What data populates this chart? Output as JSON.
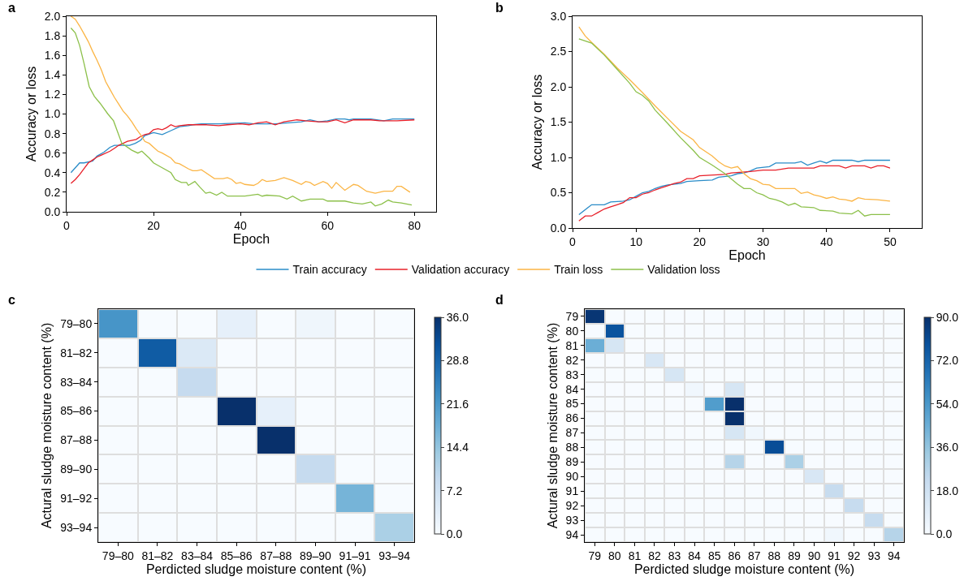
{
  "chart_data": [
    {
      "type": "line",
      "title": "a",
      "xlabel": "Epoch",
      "ylabel": "Accuracy or loss",
      "xlim": [
        0,
        85
      ],
      "xticks": [
        0,
        20,
        40,
        60,
        80
      ],
      "ylim": [
        0,
        2
      ],
      "yticks": [
        {
          "value": 0,
          "label": "0.0"
        },
        {
          "value": 0.2,
          "label": "0.2"
        },
        {
          "value": 0.4,
          "label": "0.4"
        },
        {
          "value": 0.6,
          "label": "0.6"
        },
        {
          "value": 0.8,
          "label": "0.8"
        },
        {
          "value": 1,
          "label": "1.0"
        },
        {
          "value": 1.2,
          "label": "1.2"
        },
        {
          "value": 1.4,
          "label": "1.4"
        },
        {
          "value": 1.6,
          "label": "1.6"
        },
        {
          "value": 1.8,
          "label": "1.8"
        },
        {
          "value": 2,
          "label": "2.0"
        }
      ],
      "grid": false,
      "legend": "bottom",
      "marker": "none",
      "line_style": "solid",
      "series": [
        {
          "name": "Train accuracy",
          "color": "#2a8cc8",
          "x": [
            1,
            3,
            4,
            6,
            7,
            8.6,
            10,
            11,
            14.5,
            15.8,
            17,
            18,
            20,
            22,
            24,
            26,
            28,
            29,
            31,
            35,
            41,
            43,
            48,
            54,
            56,
            58,
            60,
            62,
            64,
            65,
            66,
            70,
            73,
            75,
            79,
            80
          ],
          "values": [
            0.4,
            0.5,
            0.5,
            0.52,
            0.57,
            0.61,
            0.66,
            0.68,
            0.68,
            0.7,
            0.73,
            0.78,
            0.81,
            0.79,
            0.83,
            0.87,
            0.88,
            0.89,
            0.9,
            0.9,
            0.91,
            0.9,
            0.9,
            0.92,
            0.94,
            0.92,
            0.93,
            0.95,
            0.95,
            0.94,
            0.95,
            0.95,
            0.93,
            0.95,
            0.95,
            0.95
          ]
        },
        {
          "name": "Validation accuracy",
          "color": "#e8202a",
          "x": [
            1,
            2,
            3,
            4,
            5,
            6,
            7,
            8,
            10,
            11,
            12,
            14,
            16,
            17,
            18,
            19,
            20,
            21,
            22,
            23,
            24,
            25,
            26,
            28,
            30,
            32,
            35,
            37,
            40,
            42,
            44,
            46,
            48,
            50,
            53,
            55,
            58,
            60,
            62,
            64,
            66,
            70,
            72,
            74,
            76,
            80
          ],
          "values": [
            0.29,
            0.33,
            0.38,
            0.44,
            0.5,
            0.53,
            0.56,
            0.58,
            0.62,
            0.65,
            0.68,
            0.72,
            0.74,
            0.77,
            0.79,
            0.8,
            0.84,
            0.85,
            0.84,
            0.86,
            0.89,
            0.87,
            0.88,
            0.89,
            0.89,
            0.89,
            0.88,
            0.89,
            0.9,
            0.89,
            0.91,
            0.92,
            0.89,
            0.92,
            0.94,
            0.93,
            0.92,
            0.92,
            0.94,
            0.91,
            0.94,
            0.94,
            0.93,
            0.93,
            0.93,
            0.94
          ]
        },
        {
          "name": "Train loss",
          "color": "#fbb545",
          "x": [
            1,
            2,
            3,
            4,
            5,
            6,
            7,
            8,
            9,
            10,
            11,
            12,
            13,
            14,
            15,
            16,
            17,
            18,
            19,
            20,
            21,
            22,
            24,
            25,
            26,
            28,
            29,
            30,
            31,
            32,
            34,
            36,
            37,
            38,
            39,
            40,
            41,
            43,
            44,
            45,
            46,
            48,
            50,
            52,
            54,
            55,
            56,
            57,
            59,
            60,
            61,
            62,
            64,
            66,
            67,
            69,
            71,
            73,
            75,
            76,
            77,
            79
          ],
          "values": [
            2.0,
            1.97,
            1.9,
            1.82,
            1.74,
            1.64,
            1.55,
            1.45,
            1.33,
            1.25,
            1.17,
            1.1,
            1.03,
            0.98,
            0.92,
            0.85,
            0.79,
            0.72,
            0.7,
            0.66,
            0.62,
            0.6,
            0.55,
            0.5,
            0.49,
            0.44,
            0.42,
            0.42,
            0.43,
            0.4,
            0.34,
            0.34,
            0.35,
            0.33,
            0.29,
            0.3,
            0.28,
            0.27,
            0.29,
            0.33,
            0.31,
            0.32,
            0.35,
            0.32,
            0.28,
            0.31,
            0.3,
            0.27,
            0.31,
            0.29,
            0.24,
            0.3,
            0.22,
            0.28,
            0.27,
            0.21,
            0.19,
            0.21,
            0.21,
            0.26,
            0.26,
            0.2
          ]
        },
        {
          "name": "Validation loss",
          "color": "#8cc04a",
          "x": [
            1,
            2,
            3,
            4,
            5.2,
            6.4,
            7.7,
            9.5,
            10.8,
            12.7,
            15,
            16.4,
            17.3,
            19,
            20,
            22,
            24,
            25,
            26.4,
            27.6,
            28,
            29.5,
            30.7,
            32,
            33,
            34.5,
            35.7,
            37,
            38.8,
            41,
            44,
            45,
            46,
            49,
            50.7,
            52,
            54,
            56,
            59,
            60,
            64,
            66,
            68,
            70,
            71,
            72.5,
            74,
            75,
            77,
            79.4
          ],
          "values": [
            1.88,
            1.83,
            1.7,
            1.52,
            1.28,
            1.18,
            1.11,
            1.0,
            0.93,
            0.7,
            0.63,
            0.6,
            0.62,
            0.55,
            0.5,
            0.45,
            0.4,
            0.33,
            0.3,
            0.3,
            0.27,
            0.31,
            0.25,
            0.19,
            0.2,
            0.17,
            0.2,
            0.16,
            0.16,
            0.16,
            0.18,
            0.16,
            0.17,
            0.16,
            0.13,
            0.16,
            0.11,
            0.13,
            0.13,
            0.11,
            0.11,
            0.09,
            0.08,
            0.1,
            0.06,
            0.08,
            0.12,
            0.1,
            0.09,
            0.07
          ]
        }
      ]
    },
    {
      "type": "line",
      "title": "b",
      "xlabel": "Epoch",
      "ylabel": "Accuracy or loss",
      "xlim": [
        0,
        55
      ],
      "xticks": [
        0,
        10,
        20,
        30,
        40,
        50
      ],
      "ylim": [
        0,
        3
      ],
      "yticks": [
        {
          "value": 0,
          "label": "0.0"
        },
        {
          "value": 0.5,
          "label": "0.5"
        },
        {
          "value": 1,
          "label": "1.0"
        },
        {
          "value": 1.5,
          "label": "1.5"
        },
        {
          "value": 2,
          "label": "2.0"
        },
        {
          "value": 2.5,
          "label": "2.5"
        },
        {
          "value": 3,
          "label": "3.0"
        }
      ],
      "grid": false,
      "legend": false,
      "marker": "none",
      "line_style": "solid",
      "series": [
        {
          "color": "#2a8cc8",
          "x": [
            1,
            3,
            5,
            6,
            8,
            9,
            10,
            11,
            12,
            13,
            14,
            15,
            17,
            18,
            20,
            22,
            23,
            25,
            26,
            27,
            28,
            29,
            31,
            32,
            35,
            36,
            37,
            38,
            39,
            40,
            41,
            44,
            45,
            46,
            50
          ],
          "values": [
            0.19,
            0.33,
            0.33,
            0.37,
            0.38,
            0.4,
            0.45,
            0.5,
            0.52,
            0.56,
            0.59,
            0.61,
            0.63,
            0.66,
            0.67,
            0.68,
            0.72,
            0.74,
            0.77,
            0.78,
            0.81,
            0.85,
            0.87,
            0.92,
            0.92,
            0.94,
            0.89,
            0.92,
            0.95,
            0.92,
            0.96,
            0.96,
            0.94,
            0.96,
            0.96
          ]
        },
        {
          "color": "#e8202a",
          "x": [
            1,
            2,
            3,
            4,
            5,
            6,
            7,
            8,
            9,
            10,
            11,
            12,
            13,
            14,
            15,
            16,
            17,
            18,
            19,
            20,
            24,
            25,
            28,
            30,
            32,
            34,
            38,
            39,
            42,
            43,
            44,
            46,
            47,
            48,
            49,
            50
          ],
          "values": [
            0.1,
            0.17,
            0.17,
            0.22,
            0.27,
            0.3,
            0.33,
            0.36,
            0.43,
            0.43,
            0.48,
            0.5,
            0.54,
            0.57,
            0.6,
            0.63,
            0.65,
            0.7,
            0.7,
            0.74,
            0.76,
            0.78,
            0.8,
            0.82,
            0.82,
            0.85,
            0.85,
            0.88,
            0.88,
            0.85,
            0.88,
            0.88,
            0.85,
            0.88,
            0.88,
            0.85
          ]
        },
        {
          "color": "#fbb545",
          "x": [
            1,
            2,
            3,
            5,
            7,
            9,
            11,
            13,
            15,
            17,
            19,
            20,
            21,
            22,
            23,
            24,
            25,
            26,
            27,
            28,
            29,
            30,
            31,
            32,
            33,
            35,
            36,
            37,
            38,
            39,
            40,
            41,
            42,
            43,
            44,
            45,
            46,
            48,
            50
          ],
          "values": [
            2.85,
            2.72,
            2.63,
            2.46,
            2.27,
            2.1,
            1.92,
            1.73,
            1.55,
            1.37,
            1.25,
            1.14,
            1.08,
            1.02,
            0.94,
            0.88,
            0.85,
            0.87,
            0.77,
            0.7,
            0.67,
            0.62,
            0.61,
            0.56,
            0.56,
            0.56,
            0.49,
            0.51,
            0.47,
            0.45,
            0.42,
            0.44,
            0.41,
            0.4,
            0.38,
            0.43,
            0.41,
            0.4,
            0.38
          ]
        },
        {
          "color": "#8cc04a",
          "x": [
            1,
            3,
            5,
            7,
            9,
            10,
            11,
            12,
            13,
            15,
            17,
            19,
            20,
            22,
            24,
            26,
            27,
            28,
            29,
            30,
            31,
            32,
            33,
            34,
            35,
            36,
            38,
            39,
            41,
            42,
            44,
            45,
            46,
            47,
            50
          ],
          "values": [
            2.68,
            2.62,
            2.45,
            2.25,
            2.05,
            1.93,
            1.88,
            1.8,
            1.67,
            1.48,
            1.28,
            1.1,
            1.0,
            0.89,
            0.77,
            0.62,
            0.56,
            0.56,
            0.5,
            0.47,
            0.42,
            0.4,
            0.37,
            0.32,
            0.35,
            0.3,
            0.29,
            0.25,
            0.24,
            0.21,
            0.2,
            0.25,
            0.17,
            0.19,
            0.19
          ]
        }
      ]
    },
    {
      "type": "heatmap",
      "title": "c",
      "xlabel": "Perdicted sludge moisture content (%)",
      "ylabel": "Actural sludge moisture content (%)",
      "categories": [
        "79–80",
        "81–82",
        "83–84",
        "85–86",
        "87–88",
        "89–90",
        "91–91",
        "93–94"
      ],
      "y_categories": [
        "79–80",
        "81–82",
        "83–84",
        "85–86",
        "87–88",
        "89–90",
        "91–92",
        "93–94"
      ],
      "cells": [
        [
          22,
          0,
          0,
          3,
          0,
          1.5,
          0,
          0
        ],
        [
          0,
          30,
          5,
          0,
          0,
          0,
          0,
          0
        ],
        [
          0,
          0,
          9,
          0,
          0,
          0,
          0,
          0
        ],
        [
          0,
          0,
          0,
          36,
          3,
          0,
          0,
          0
        ],
        [
          0,
          0,
          0,
          0,
          36,
          0,
          0,
          0
        ],
        [
          0,
          0,
          0,
          0,
          0,
          9,
          0,
          0
        ],
        [
          0,
          0,
          0,
          0,
          0,
          0,
          17,
          0
        ],
        [
          0,
          0,
          0,
          0,
          0,
          0,
          0,
          12
        ]
      ],
      "clim": [
        0,
        36
      ],
      "cticks": [
        {
          "value": 0,
          "label": "0.0"
        },
        {
          "value": 7.2,
          "label": "7.2"
        },
        {
          "value": 14.4,
          "label": "14.4"
        },
        {
          "value": 21.6,
          "label": "21.6"
        },
        {
          "value": 28.8,
          "label": "28.8"
        },
        {
          "value": 36,
          "label": "36.0"
        }
      ]
    },
    {
      "type": "heatmap",
      "title": "d",
      "xlabel": "Perdicted sludge moisture content (%)",
      "ylabel": "Actural sludge moisture content (%)",
      "categories": [
        "79",
        "80",
        "81",
        "82",
        "83",
        "84",
        "85",
        "86",
        "87",
        "88",
        "89",
        "90",
        "91",
        "92",
        "93",
        "94"
      ],
      "y_categories": [
        "79",
        "80",
        "81",
        "82",
        "83",
        "84",
        "85",
        "86",
        "87",
        "88",
        "89",
        "90",
        "91",
        "92",
        "93",
        "94"
      ],
      "cells": [
        [
          88,
          0,
          0,
          0,
          0,
          0,
          0,
          0,
          0,
          0,
          0,
          0,
          0,
          0,
          0,
          0
        ],
        [
          0,
          78,
          0,
          0,
          0,
          0,
          0,
          0,
          0,
          0,
          0,
          0,
          0,
          0,
          0,
          0
        ],
        [
          45,
          15,
          0,
          0,
          0,
          0,
          0,
          0,
          0,
          0,
          0,
          0,
          0,
          0,
          0,
          0
        ],
        [
          0,
          0,
          0,
          14,
          0,
          0,
          0,
          0,
          0,
          0,
          0,
          0,
          0,
          0,
          0,
          0
        ],
        [
          0,
          0,
          0,
          0,
          15,
          0,
          0,
          0,
          0,
          0,
          0,
          0,
          0,
          0,
          0,
          0
        ],
        [
          0,
          0,
          0,
          0,
          0,
          3,
          0,
          15,
          0,
          0,
          0,
          0,
          0,
          0,
          0,
          0
        ],
        [
          0,
          0,
          0,
          0,
          0,
          0,
          52,
          90,
          0,
          0,
          0,
          0,
          0,
          0,
          0,
          0
        ],
        [
          0,
          0,
          0,
          0,
          0,
          0,
          0,
          90,
          0,
          0,
          0,
          0,
          0,
          0,
          0,
          0
        ],
        [
          0,
          0,
          0,
          0,
          0,
          0,
          0,
          15,
          3,
          0,
          0,
          0,
          0,
          0,
          0,
          0
        ],
        [
          0,
          0,
          0,
          0,
          0,
          0,
          0,
          0,
          0,
          80,
          0,
          0,
          0,
          0,
          0,
          0
        ],
        [
          0,
          0,
          0,
          0,
          0,
          0,
          0,
          27,
          0,
          0,
          30,
          0,
          0,
          0,
          0,
          0
        ],
        [
          0,
          0,
          0,
          0,
          0,
          0,
          0,
          0,
          0,
          0,
          0,
          14,
          0,
          0,
          0,
          0
        ],
        [
          0,
          0,
          0,
          0,
          0,
          0,
          0,
          0,
          0,
          0,
          0,
          0,
          22,
          0,
          0,
          0
        ],
        [
          0,
          0,
          0,
          0,
          0,
          0,
          0,
          0,
          0,
          0,
          0,
          0,
          0,
          22,
          0,
          0
        ],
        [
          0,
          0,
          0,
          0,
          0,
          0,
          0,
          0,
          0,
          0,
          0,
          0,
          0,
          0,
          22,
          0
        ],
        [
          0,
          0,
          0,
          0,
          0,
          0,
          0,
          0,
          0,
          0,
          0,
          0,
          3,
          0,
          0,
          27
        ]
      ],
      "clim": [
        0,
        90
      ],
      "cticks": [
        {
          "value": 0,
          "label": "0.0"
        },
        {
          "value": 18,
          "label": "18.0"
        },
        {
          "value": 36,
          "label": "36.0"
        },
        {
          "value": 54,
          "label": "54.0"
        },
        {
          "value": 72,
          "label": "72.0"
        },
        {
          "value": 90,
          "label": "90.0"
        }
      ]
    }
  ]
}
